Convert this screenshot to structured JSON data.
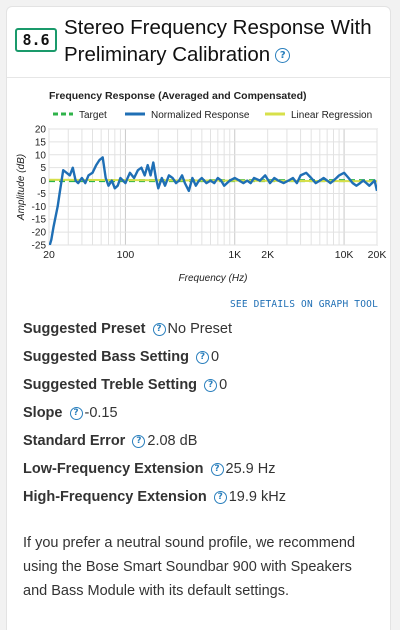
{
  "header": {
    "score": "8.6",
    "title": "Stereo Frequency Response With Preliminary Calibration",
    "help_icon": "?"
  },
  "graph": {
    "details_link": "SEE DETAILS ON GRAPH TOOL"
  },
  "chart_data": {
    "type": "line",
    "title": "Frequency Response (Averaged and Compensated)",
    "xlabel": "Frequency (Hz)",
    "ylabel": "Amplitude (dB)",
    "xscale": "log",
    "xlim": [
      20,
      20000
    ],
    "ylim": [
      -25,
      20
    ],
    "xticks": [
      20,
      100,
      1000,
      2000,
      10000,
      20000
    ],
    "xtick_labels": [
      "20",
      "100",
      "1K",
      "2K",
      "10K",
      "20K"
    ],
    "yticks": [
      20,
      15,
      10,
      5,
      0,
      -5,
      -10,
      -15,
      -20,
      -25
    ],
    "grid": true,
    "legend_position": "top",
    "colors": {
      "target": "#2fb34a",
      "normalized": "#1f6fb5",
      "regression": "#d7e04a"
    },
    "series": [
      {
        "name": "Target",
        "style": "dashed",
        "x": [
          20,
          20000
        ],
        "y": [
          0,
          0
        ]
      },
      {
        "name": "Normalized Response",
        "style": "solid",
        "x": [
          20,
          21,
          22,
          23,
          24,
          25,
          27,
          29,
          31,
          33,
          35,
          37,
          40,
          43,
          46,
          50,
          54,
          58,
          62,
          66,
          70,
          75,
          80,
          85,
          90,
          95,
          100,
          110,
          120,
          130,
          140,
          150,
          160,
          170,
          180,
          190,
          200,
          215,
          230,
          250,
          270,
          290,
          310,
          330,
          350,
          380,
          410,
          440,
          470,
          500,
          550,
          600,
          650,
          700,
          750,
          800,
          850,
          900,
          1000,
          1100,
          1200,
          1300,
          1400,
          1500,
          1700,
          1900,
          2100,
          2300,
          2500,
          2800,
          3100,
          3400,
          3700,
          4000,
          4500,
          5000,
          5500,
          6000,
          6500,
          7000,
          7500,
          8000,
          8500,
          9000,
          10000,
          11000,
          12000,
          13000,
          14000,
          15000,
          16000,
          17000,
          18000,
          19000,
          20000
        ],
        "y": [
          -26,
          -23,
          -18,
          -14,
          -10,
          -5,
          4,
          3,
          2,
          5,
          0,
          -1,
          1,
          -1,
          2,
          3,
          6,
          8,
          9,
          1,
          -2,
          0,
          -3,
          -2,
          1,
          0,
          -1,
          3,
          1,
          4,
          5,
          2,
          6,
          2,
          7,
          1,
          -3,
          1,
          -2,
          2,
          1,
          -1,
          0,
          2,
          -1,
          -4,
          1,
          -2,
          0,
          1,
          -1,
          0,
          -1,
          1,
          0,
          -2,
          -1,
          0,
          1,
          0,
          -1,
          0,
          -1,
          1,
          0,
          2,
          -1,
          1,
          0,
          -1,
          0,
          1,
          -1,
          2,
          3,
          1,
          -1,
          0,
          1,
          0,
          -1,
          0,
          1,
          2,
          3,
          1,
          -1,
          -2,
          -1,
          0,
          -1,
          -2,
          -1,
          0,
          -4
        ]
      },
      {
        "name": "Linear Regression",
        "style": "solid",
        "x": [
          20,
          20000
        ],
        "y": [
          0.3,
          -0.3
        ]
      }
    ]
  },
  "metrics": [
    {
      "label": "Suggested Preset",
      "value": "No Preset"
    },
    {
      "label": "Suggested Bass Setting",
      "value": "0"
    },
    {
      "label": "Suggested Treble Setting",
      "value": "0"
    },
    {
      "label": "Slope",
      "value": "-0.15"
    },
    {
      "label": "Standard Error",
      "value": "2.08 dB"
    },
    {
      "label": "Low-Frequency Extension",
      "value": "25.9 Hz"
    },
    {
      "label": "High-Frequency Extension",
      "value": "19.9 kHz"
    }
  ],
  "recommendation": "If you prefer a neutral sound profile, we recommend using the Bose Smart Soundbar 900 with Speakers and Bass Module with its default settings."
}
